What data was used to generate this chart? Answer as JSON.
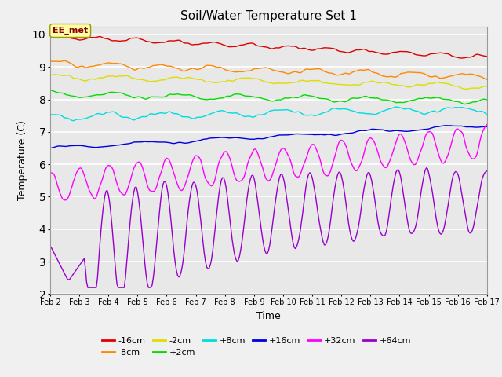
{
  "title": "Soil/Water Temperature Set 1",
  "xlabel": "Time",
  "ylabel": "Temperature (C)",
  "ylim": [
    2.0,
    10.25
  ],
  "xlim": [
    0,
    360
  ],
  "x_tick_labels": [
    "Feb 2",
    "Feb 3",
    "Feb 4",
    "Feb 5",
    "Feb 6",
    "Feb 7",
    "Feb 8",
    "Feb 9",
    "Feb 10",
    "Feb 11",
    "Feb 12",
    "Feb 13",
    "Feb 14",
    "Feb 15",
    "Feb 16",
    "Feb 17"
  ],
  "x_tick_positions": [
    0,
    24,
    48,
    72,
    96,
    120,
    144,
    168,
    192,
    216,
    240,
    264,
    288,
    312,
    336,
    360
  ],
  "yticks": [
    2.0,
    3.0,
    4.0,
    5.0,
    6.0,
    7.0,
    8.0,
    9.0,
    10.0
  ],
  "series_colors": [
    "#dd0000",
    "#ff8800",
    "#dddd00",
    "#00dd00",
    "#00dddd",
    "#0000dd",
    "#ff00ff",
    "#9900cc"
  ],
  "series_labels": [
    "-16cm",
    "-8cm",
    "-2cm",
    "+2cm",
    "+8cm",
    "+16cm",
    "+32cm",
    "+64cm"
  ],
  "annotation_text": "EE_met",
  "background_color": "#e8e8e8",
  "grid_color": "#ffffff",
  "figsize": [
    6.4,
    4.8
  ],
  "dpi": 100
}
